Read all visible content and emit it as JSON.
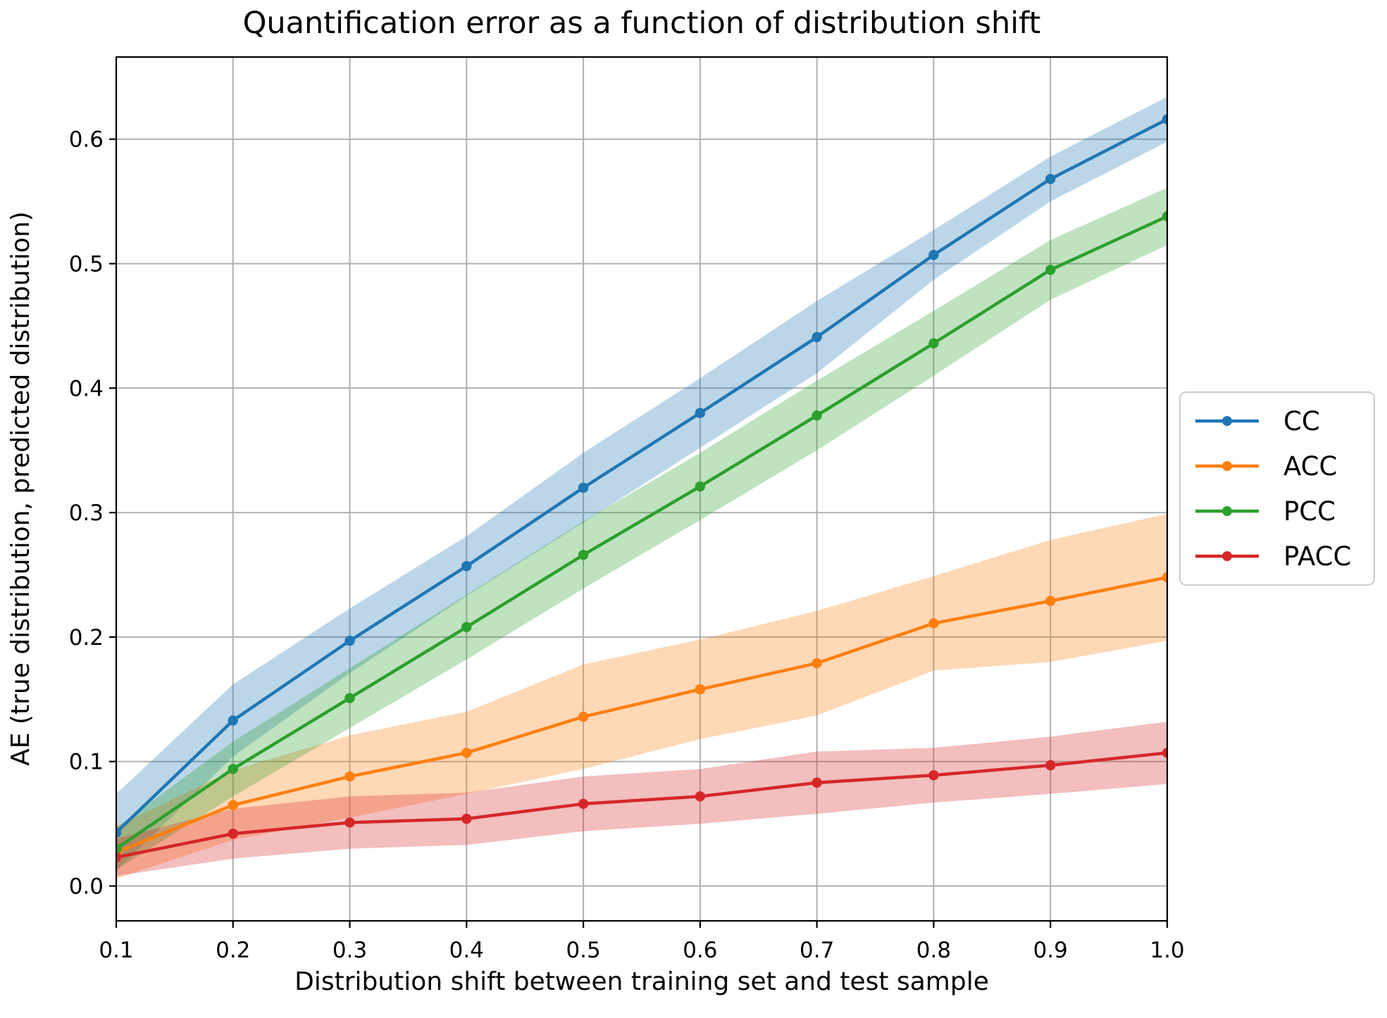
{
  "figure": {
    "title": "Quantification error as a function of distribution shift",
    "xlabel": "Distribution shift between training set and test sample",
    "ylabel": "AE (true distribution, predicted distribution)"
  },
  "chart_data": {
    "type": "line",
    "title": "Quantification error as a function of distribution shift",
    "xlabel": "Distribution shift between training set and test sample",
    "ylabel": "AE (true distribution, predicted distribution)",
    "x": [
      0.1,
      0.2,
      0.3,
      0.4,
      0.5,
      0.6,
      0.7,
      0.8,
      0.9,
      1.0
    ],
    "xlim": [
      0.1,
      1.0
    ],
    "ylim": [
      -0.028,
      0.666
    ],
    "xtick_labels": [
      "0.1",
      "0.2",
      "0.3",
      "0.4",
      "0.5",
      "0.6",
      "0.7",
      "0.8",
      "0.9",
      "1.0"
    ],
    "ytick_labels": [
      "0.0",
      "0.1",
      "0.2",
      "0.3",
      "0.4",
      "0.5",
      "0.6"
    ],
    "grid": true,
    "legend_position": "outside center right",
    "band_alpha": 0.3,
    "marker": "dot",
    "series": [
      {
        "name": "CC",
        "color": "#1f77b4",
        "values": [
          0.043,
          0.133,
          0.197,
          0.257,
          0.32,
          0.38,
          0.441,
          0.507,
          0.568,
          0.616
        ],
        "band_halfwidth": [
          0.031,
          0.029,
          0.026,
          0.024,
          0.028,
          0.028,
          0.029,
          0.02,
          0.018,
          0.018
        ]
      },
      {
        "name": "ACC",
        "color": "#ff7f0e",
        "values": [
          0.027,
          0.065,
          0.088,
          0.107,
          0.136,
          0.158,
          0.179,
          0.211,
          0.229,
          0.248
        ],
        "band_halfwidth": [
          0.021,
          0.028,
          0.033,
          0.033,
          0.042,
          0.04,
          0.042,
          0.038,
          0.049,
          0.051
        ]
      },
      {
        "name": "PCC",
        "color": "#2ca02c",
        "values": [
          0.03,
          0.094,
          0.151,
          0.208,
          0.266,
          0.321,
          0.378,
          0.436,
          0.495,
          0.538
        ],
        "band_halfwidth": [
          0.017,
          0.022,
          0.024,
          0.026,
          0.027,
          0.027,
          0.028,
          0.026,
          0.024,
          0.023
        ]
      },
      {
        "name": "PACC",
        "color": "#d62728",
        "values": [
          0.023,
          0.042,
          0.051,
          0.054,
          0.066,
          0.072,
          0.083,
          0.089,
          0.097,
          0.107
        ],
        "band_halfwidth": [
          0.015,
          0.02,
          0.021,
          0.021,
          0.022,
          0.022,
          0.025,
          0.022,
          0.023,
          0.025
        ]
      }
    ]
  },
  "legend": {
    "items": [
      {
        "label": "CC",
        "color": "#1f77b4"
      },
      {
        "label": "ACC",
        "color": "#ff7f0e"
      },
      {
        "label": "PCC",
        "color": "#2ca02c"
      },
      {
        "label": "PACC",
        "color": "#d62728"
      }
    ]
  },
  "colors": {
    "background": "#ffffff",
    "grid": "#b0b0b0",
    "spine": "#000000",
    "tick": "#000000",
    "text": "#000000",
    "legend_border": "#cccccc"
  }
}
